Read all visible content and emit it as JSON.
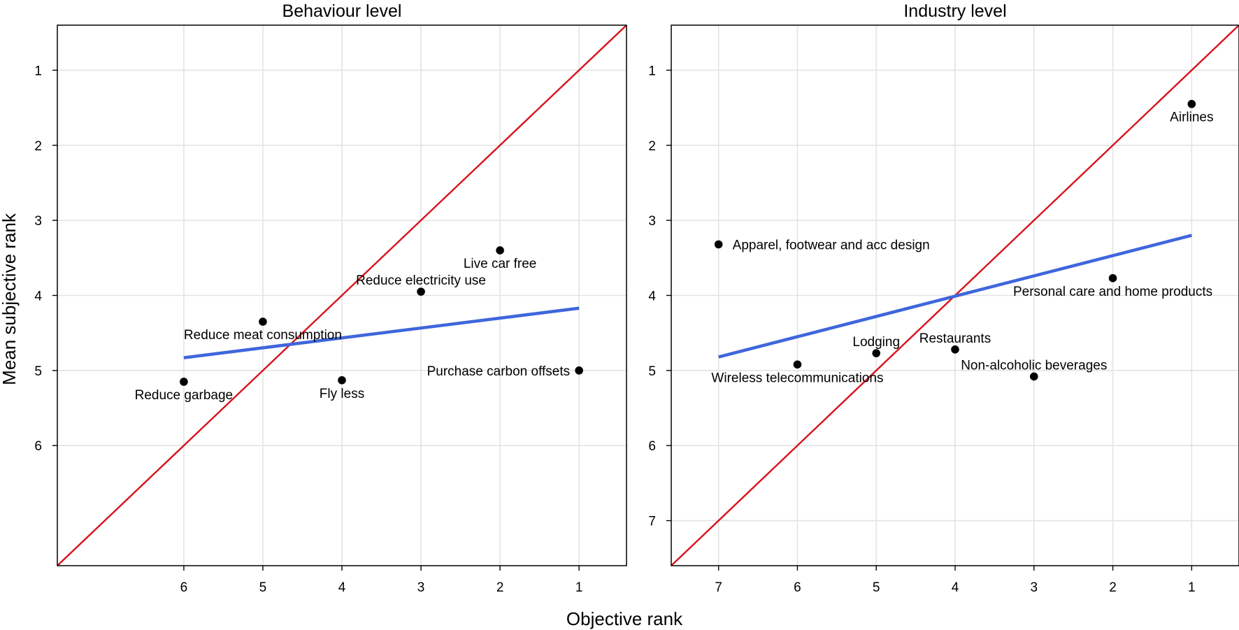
{
  "figure": {
    "xlabel": "Objective rank",
    "ylabel": "Mean subjective rank"
  },
  "colors": {
    "identity_line": "#d8121b",
    "fit_line": "#3f66dc",
    "points": "#000000",
    "grid": "#e3e3e3"
  },
  "chart_data": [
    {
      "type": "scatter",
      "title": "Behaviour level",
      "xlabel": "Objective rank",
      "ylabel": "Mean subjective rank",
      "x_reversed": true,
      "y_reversed": true,
      "xlim": [
        7.6,
        0.4
      ],
      "ylim": [
        0.4,
        7.6
      ],
      "xticks": [
        6,
        5,
        4,
        3,
        2,
        1
      ],
      "yticks": [
        1,
        2,
        3,
        4,
        5,
        6
      ],
      "grid": true,
      "points": [
        {
          "label": "Live car free",
          "x": 2,
          "y": 3.4,
          "label_pos": "below"
        },
        {
          "label": "Reduce electricity use",
          "x": 3,
          "y": 3.95,
          "label_pos": "above"
        },
        {
          "label": "Reduce meat consumption",
          "x": 5,
          "y": 4.35,
          "label_pos": "below"
        },
        {
          "label": "Purchase carbon offsets",
          "x": 1,
          "y": 5.0,
          "label_pos": "left"
        },
        {
          "label": "Fly less",
          "x": 4,
          "y": 5.13,
          "label_pos": "below"
        },
        {
          "label": "Reduce garbage",
          "x": 6,
          "y": 5.15,
          "label_pos": "below"
        }
      ],
      "identity_line": {
        "from": [
          7.6,
          7.6
        ],
        "to": [
          0.4,
          0.4
        ]
      },
      "fit_line": {
        "from": [
          6,
          4.83
        ],
        "to": [
          1,
          4.17
        ]
      }
    },
    {
      "type": "scatter",
      "title": "Industry level",
      "xlabel": "Objective rank",
      "ylabel": "Mean subjective rank",
      "x_reversed": true,
      "y_reversed": true,
      "xlim": [
        7.6,
        0.4
      ],
      "ylim": [
        0.4,
        7.6
      ],
      "xticks": [
        7,
        6,
        5,
        4,
        3,
        2,
        1
      ],
      "yticks": [
        1,
        2,
        3,
        4,
        5,
        6,
        7
      ],
      "grid": true,
      "points": [
        {
          "label": "Airlines",
          "x": 1,
          "y": 1.45,
          "label_pos": "below"
        },
        {
          "label": "Apparel, footwear and acc design",
          "x": 7,
          "y": 3.32,
          "label_pos": "right"
        },
        {
          "label": "Personal care and home products",
          "x": 2,
          "y": 3.77,
          "label_pos": "below"
        },
        {
          "label": "Restaurants",
          "x": 4,
          "y": 4.72,
          "label_pos": "above"
        },
        {
          "label": "Lodging",
          "x": 5,
          "y": 4.77,
          "label_pos": "above"
        },
        {
          "label": "Wireless telecommunications",
          "x": 6,
          "y": 4.92,
          "label_pos": "below"
        },
        {
          "label": "Non-alcoholic beverages",
          "x": 3,
          "y": 5.08,
          "label_pos": "above"
        }
      ],
      "identity_line": {
        "from": [
          7.6,
          7.6
        ],
        "to": [
          0.4,
          0.4
        ]
      },
      "fit_line": {
        "from": [
          7,
          4.82
        ],
        "to": [
          1,
          3.2
        ]
      }
    }
  ]
}
